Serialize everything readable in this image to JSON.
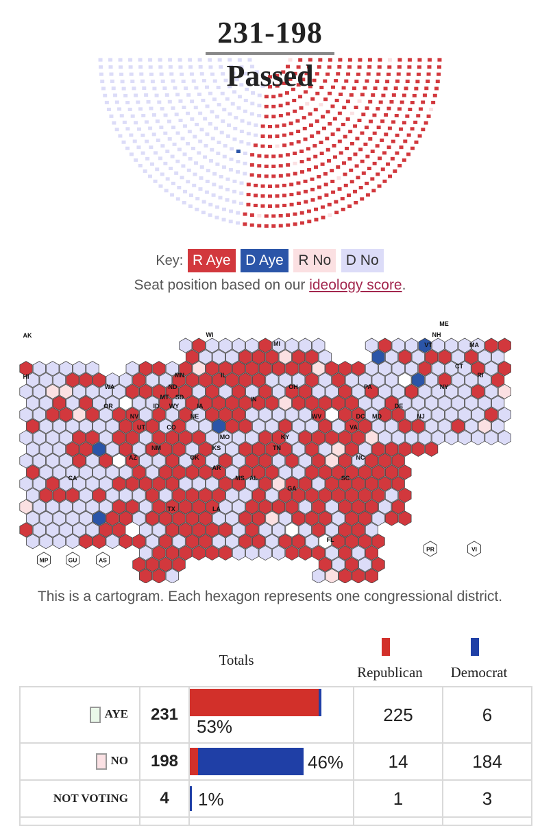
{
  "header": {
    "vote_count": "231-198",
    "result": "Passed"
  },
  "key": {
    "label": "Key:",
    "items": [
      {
        "label": "R Aye",
        "color": "#d2383d"
      },
      {
        "label": "D Aye",
        "color": "#2b55a8"
      },
      {
        "label": "R No",
        "color": "#fbe0e2"
      },
      {
        "label": "D No",
        "color": "#dcdcf8"
      }
    ]
  },
  "seat_note": {
    "prefix": "Seat position based on our ",
    "link": "ideology score",
    "suffix": "."
  },
  "map": {
    "caption": "This is a cartogram. Each hexagon represents one congressional district.",
    "colors": {
      "r_aye": "#d2383d",
      "d_aye": "#2b55a8",
      "r_no": "#fbe0e2",
      "d_no": "#dcdcf8",
      "not_voting": "#ffffff"
    },
    "state_labels": [
      "AK",
      "HI",
      "WA",
      "OR",
      "CA",
      "NV",
      "ID",
      "MT",
      "WY",
      "ND",
      "SD",
      "MN",
      "WI",
      "MI",
      "IL",
      "IN",
      "OH",
      "PA",
      "NY",
      "VT",
      "NH",
      "ME",
      "MA",
      "CT",
      "RI",
      "NJ",
      "DE",
      "MD",
      "DC",
      "WV",
      "VA",
      "KY",
      "TN",
      "NC",
      "SC",
      "GA",
      "FL",
      "AL",
      "MS",
      "LA",
      "AR",
      "MO",
      "IA",
      "NE",
      "KS",
      "OK",
      "TX",
      "NM",
      "AZ",
      "UT",
      "CO"
    ],
    "territory_labels": [
      "MP",
      "GU",
      "AS",
      "PR",
      "VI"
    ]
  },
  "chart_data": {
    "type": "table",
    "title": "231-198",
    "subtitle": "Passed",
    "totals_heading": "Totals",
    "parties": [
      {
        "name": "Republican",
        "color": "#d2302a"
      },
      {
        "name": "Democrat",
        "color": "#1f3fa6"
      }
    ],
    "rows": [
      {
        "label": "AYE",
        "total": "231",
        "pct": "53%",
        "republican": "225",
        "democrat": "6"
      },
      {
        "label": "NO",
        "total": "198",
        "pct": "46%",
        "republican": "14",
        "democrat": "184"
      },
      {
        "label": "NOT VOTING",
        "total": "4",
        "pct": "1%",
        "republican": "1",
        "democrat": "3"
      }
    ],
    "seat_arc": {
      "r_aye": 225,
      "d_aye": 6,
      "r_no": 14,
      "d_no": 184
    }
  }
}
